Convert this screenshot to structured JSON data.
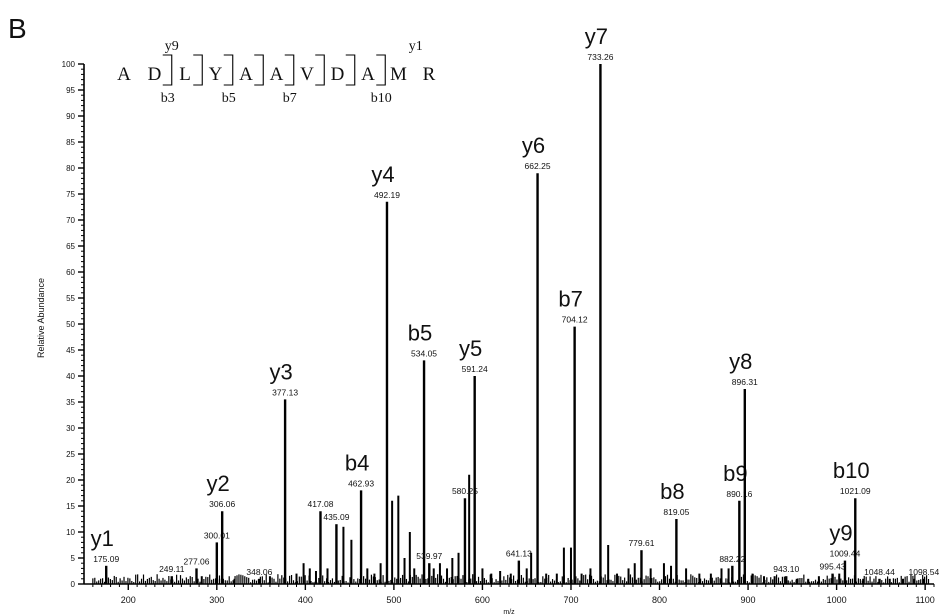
{
  "panel_label": "B",
  "peptide": {
    "residues": [
      "A",
      "D",
      "L",
      "Y",
      "A",
      "A",
      "V",
      "D",
      "A",
      "M",
      "R"
    ],
    "y_ion_markers": [
      {
        "label": "y9",
        "after_residue": 2
      },
      {
        "label": "y1",
        "after_residue": 10
      }
    ],
    "b_ion_markers": [
      {
        "label": "b3",
        "after_residue": 3
      },
      {
        "label": "b5",
        "after_residue": 5
      },
      {
        "label": "b7",
        "after_residue": 7
      },
      {
        "label": "b10",
        "after_residue": 10
      }
    ]
  },
  "chart_data": {
    "type": "bar",
    "title": "",
    "xlabel": "m/z",
    "ylabel": "Relative Abundance",
    "xlim": [
      150,
      1110
    ],
    "ylim": [
      0,
      100
    ],
    "x_ticks": [
      200,
      300,
      400,
      500,
      600,
      700,
      800,
      900,
      1000,
      1100
    ],
    "y_ticks": [
      0,
      5,
      10,
      15,
      20,
      25,
      30,
      35,
      40,
      45,
      50,
      55,
      60,
      65,
      70,
      75,
      80,
      85,
      90,
      95,
      100
    ],
    "peaks": [
      {
        "mz": 175.09,
        "intensity": 3.5,
        "mz_label": "175.09",
        "ion": "y1"
      },
      {
        "mz": 249.11,
        "intensity": 1.5,
        "mz_label": "249.11"
      },
      {
        "mz": 277.06,
        "intensity": 3,
        "mz_label": "277.06"
      },
      {
        "mz": 300.01,
        "intensity": 8,
        "mz_label": "300.01"
      },
      {
        "mz": 306.06,
        "intensity": 14,
        "mz_label": "306.06",
        "ion": "y2"
      },
      {
        "mz": 348.06,
        "intensity": 1,
        "mz_label": "348.06"
      },
      {
        "mz": 377.13,
        "intensity": 35.5,
        "mz_label": "377.13",
        "ion": "y3"
      },
      {
        "mz": 417.08,
        "intensity": 14,
        "mz_label": "417.08"
      },
      {
        "mz": 435.09,
        "intensity": 11.5,
        "mz_label": "435.09"
      },
      {
        "mz": 462.93,
        "intensity": 18,
        "mz_label": "462.93",
        "ion": "b4"
      },
      {
        "mz": 492.19,
        "intensity": 73.5,
        "mz_label": "492.19",
        "ion": "y4"
      },
      {
        "mz": 534.05,
        "intensity": 43,
        "mz_label": "534.05",
        "ion": "b5"
      },
      {
        "mz": 539.97,
        "intensity": 4,
        "mz_label": "539.97"
      },
      {
        "mz": 580.25,
        "intensity": 16.5,
        "mz_label": "580.25"
      },
      {
        "mz": 591.24,
        "intensity": 40,
        "mz_label": "591.24",
        "ion": "y5"
      },
      {
        "mz": 641.13,
        "intensity": 4.5,
        "mz_label": "641.13"
      },
      {
        "mz": 662.25,
        "intensity": 79,
        "mz_label": "662.25",
        "ion": "y6"
      },
      {
        "mz": 704.12,
        "intensity": 49.5,
        "mz_label": "704.12",
        "ion": "b7"
      },
      {
        "mz": 733.26,
        "intensity": 100,
        "mz_label": "733.26",
        "ion": "y7"
      },
      {
        "mz": 779.61,
        "intensity": 6.5,
        "mz_label": "779.61"
      },
      {
        "mz": 819.05,
        "intensity": 12.5,
        "mz_label": "819.05",
        "ion": "b8"
      },
      {
        "mz": 882.22,
        "intensity": 3.5,
        "mz_label": "882.22"
      },
      {
        "mz": 890.16,
        "intensity": 16,
        "mz_label": "890.16",
        "ion": "b9"
      },
      {
        "mz": 896.31,
        "intensity": 37.5,
        "mz_label": "896.31",
        "ion": "y8"
      },
      {
        "mz": 943.1,
        "intensity": 1.5,
        "mz_label": "943.10"
      },
      {
        "mz": 995.43,
        "intensity": 2,
        "mz_label": "995.43"
      },
      {
        "mz": 1009.44,
        "intensity": 4.5,
        "mz_label": "1009.44",
        "ion": "y9"
      },
      {
        "mz": 1021.09,
        "intensity": 16.5,
        "mz_label": "1021.09",
        "ion": "b10"
      },
      {
        "mz": 1048.44,
        "intensity": 1,
        "mz_label": "1048.44"
      },
      {
        "mz": 1098.54,
        "intensity": 1,
        "mz_label": "1098.54"
      }
    ],
    "minor_peaks": [
      {
        "mz": 283,
        "intensity": 1.5
      },
      {
        "mz": 320,
        "intensity": 1
      },
      {
        "mz": 360,
        "intensity": 1.5
      },
      {
        "mz": 390,
        "intensity": 2
      },
      {
        "mz": 398,
        "intensity": 4
      },
      {
        "mz": 405,
        "intensity": 3
      },
      {
        "mz": 412,
        "intensity": 2.5
      },
      {
        "mz": 425,
        "intensity": 3
      },
      {
        "mz": 443,
        "intensity": 11
      },
      {
        "mz": 452,
        "intensity": 8.5
      },
      {
        "mz": 470,
        "intensity": 3
      },
      {
        "mz": 478,
        "intensity": 2
      },
      {
        "mz": 485,
        "intensity": 4
      },
      {
        "mz": 498,
        "intensity": 16
      },
      {
        "mz": 505,
        "intensity": 17
      },
      {
        "mz": 512,
        "intensity": 5
      },
      {
        "mz": 518,
        "intensity": 10
      },
      {
        "mz": 523,
        "intensity": 3
      },
      {
        "mz": 545,
        "intensity": 3
      },
      {
        "mz": 552,
        "intensity": 4
      },
      {
        "mz": 560,
        "intensity": 3
      },
      {
        "mz": 566,
        "intensity": 5
      },
      {
        "mz": 573,
        "intensity": 6
      },
      {
        "mz": 585,
        "intensity": 21
      },
      {
        "mz": 600,
        "intensity": 3
      },
      {
        "mz": 610,
        "intensity": 2
      },
      {
        "mz": 620,
        "intensity": 2.5
      },
      {
        "mz": 632,
        "intensity": 2
      },
      {
        "mz": 650,
        "intensity": 3
      },
      {
        "mz": 655,
        "intensity": 6
      },
      {
        "mz": 672,
        "intensity": 2
      },
      {
        "mz": 684,
        "intensity": 2
      },
      {
        "mz": 692,
        "intensity": 7
      },
      {
        "mz": 700,
        "intensity": 7
      },
      {
        "mz": 712,
        "intensity": 2
      },
      {
        "mz": 722,
        "intensity": 3
      },
      {
        "mz": 742,
        "intensity": 7.5
      },
      {
        "mz": 752,
        "intensity": 2
      },
      {
        "mz": 765,
        "intensity": 3
      },
      {
        "mz": 772,
        "intensity": 4
      },
      {
        "mz": 790,
        "intensity": 3
      },
      {
        "mz": 805,
        "intensity": 4
      },
      {
        "mz": 813,
        "intensity": 3.5
      },
      {
        "mz": 830,
        "intensity": 3
      },
      {
        "mz": 845,
        "intensity": 2
      },
      {
        "mz": 858,
        "intensity": 2
      },
      {
        "mz": 870,
        "intensity": 3
      },
      {
        "mz": 878,
        "intensity": 3
      },
      {
        "mz": 905,
        "intensity": 2
      },
      {
        "mz": 918,
        "intensity": 1.5
      },
      {
        "mz": 930,
        "intensity": 1.5
      },
      {
        "mz": 955,
        "intensity": 1
      },
      {
        "mz": 968,
        "intensity": 1
      },
      {
        "mz": 980,
        "intensity": 1.5
      },
      {
        "mz": 1003,
        "intensity": 2
      },
      {
        "mz": 1030,
        "intensity": 1
      },
      {
        "mz": 1060,
        "intensity": 1
      },
      {
        "mz": 1075,
        "intensity": 1
      },
      {
        "mz": 1088,
        "intensity": 1
      }
    ],
    "grid": false,
    "legend": "none"
  }
}
